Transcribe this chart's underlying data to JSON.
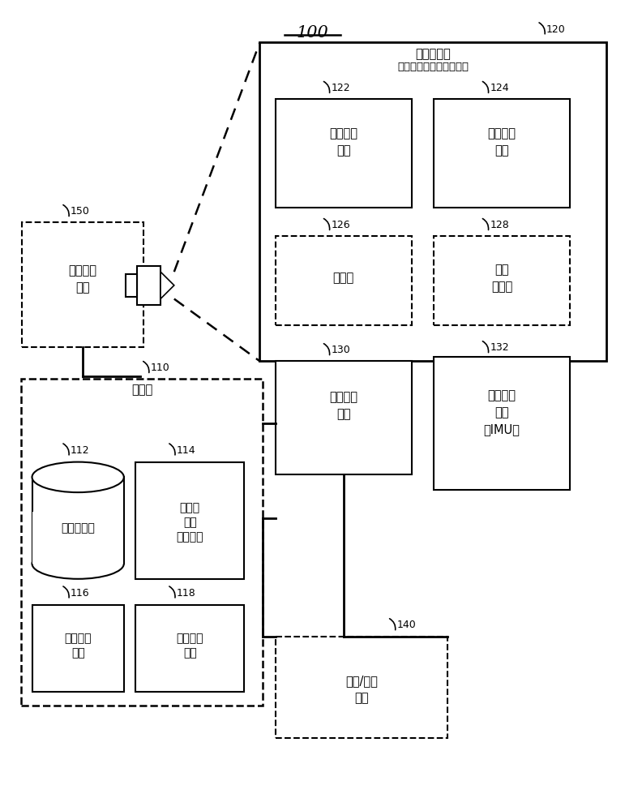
{
  "title": "100",
  "bg_color": "#ffffff",
  "fig_width": 7.71,
  "fig_height": 10.0,
  "labels": {
    "120_title1": "近眼显示器",
    "120_title2": "（例如，头戴式显示器）",
    "122": "显示电子\n器件",
    "124": "显示光学\n器件",
    "126": "定位器",
    "128": "位置\n传感器",
    "130": "眼睛跟踪\n单元",
    "132": "惯性测量\n单元\n（IMU）",
    "110_title": "控制台",
    "112": "应用储存器",
    "114": "头戴式\n装置\n跟踪模块",
    "116": "人工现实\n引擎",
    "118": "眼睛跟踪\n模块",
    "150": "外部成像\n设备",
    "140": "输入/输出\n接口"
  }
}
